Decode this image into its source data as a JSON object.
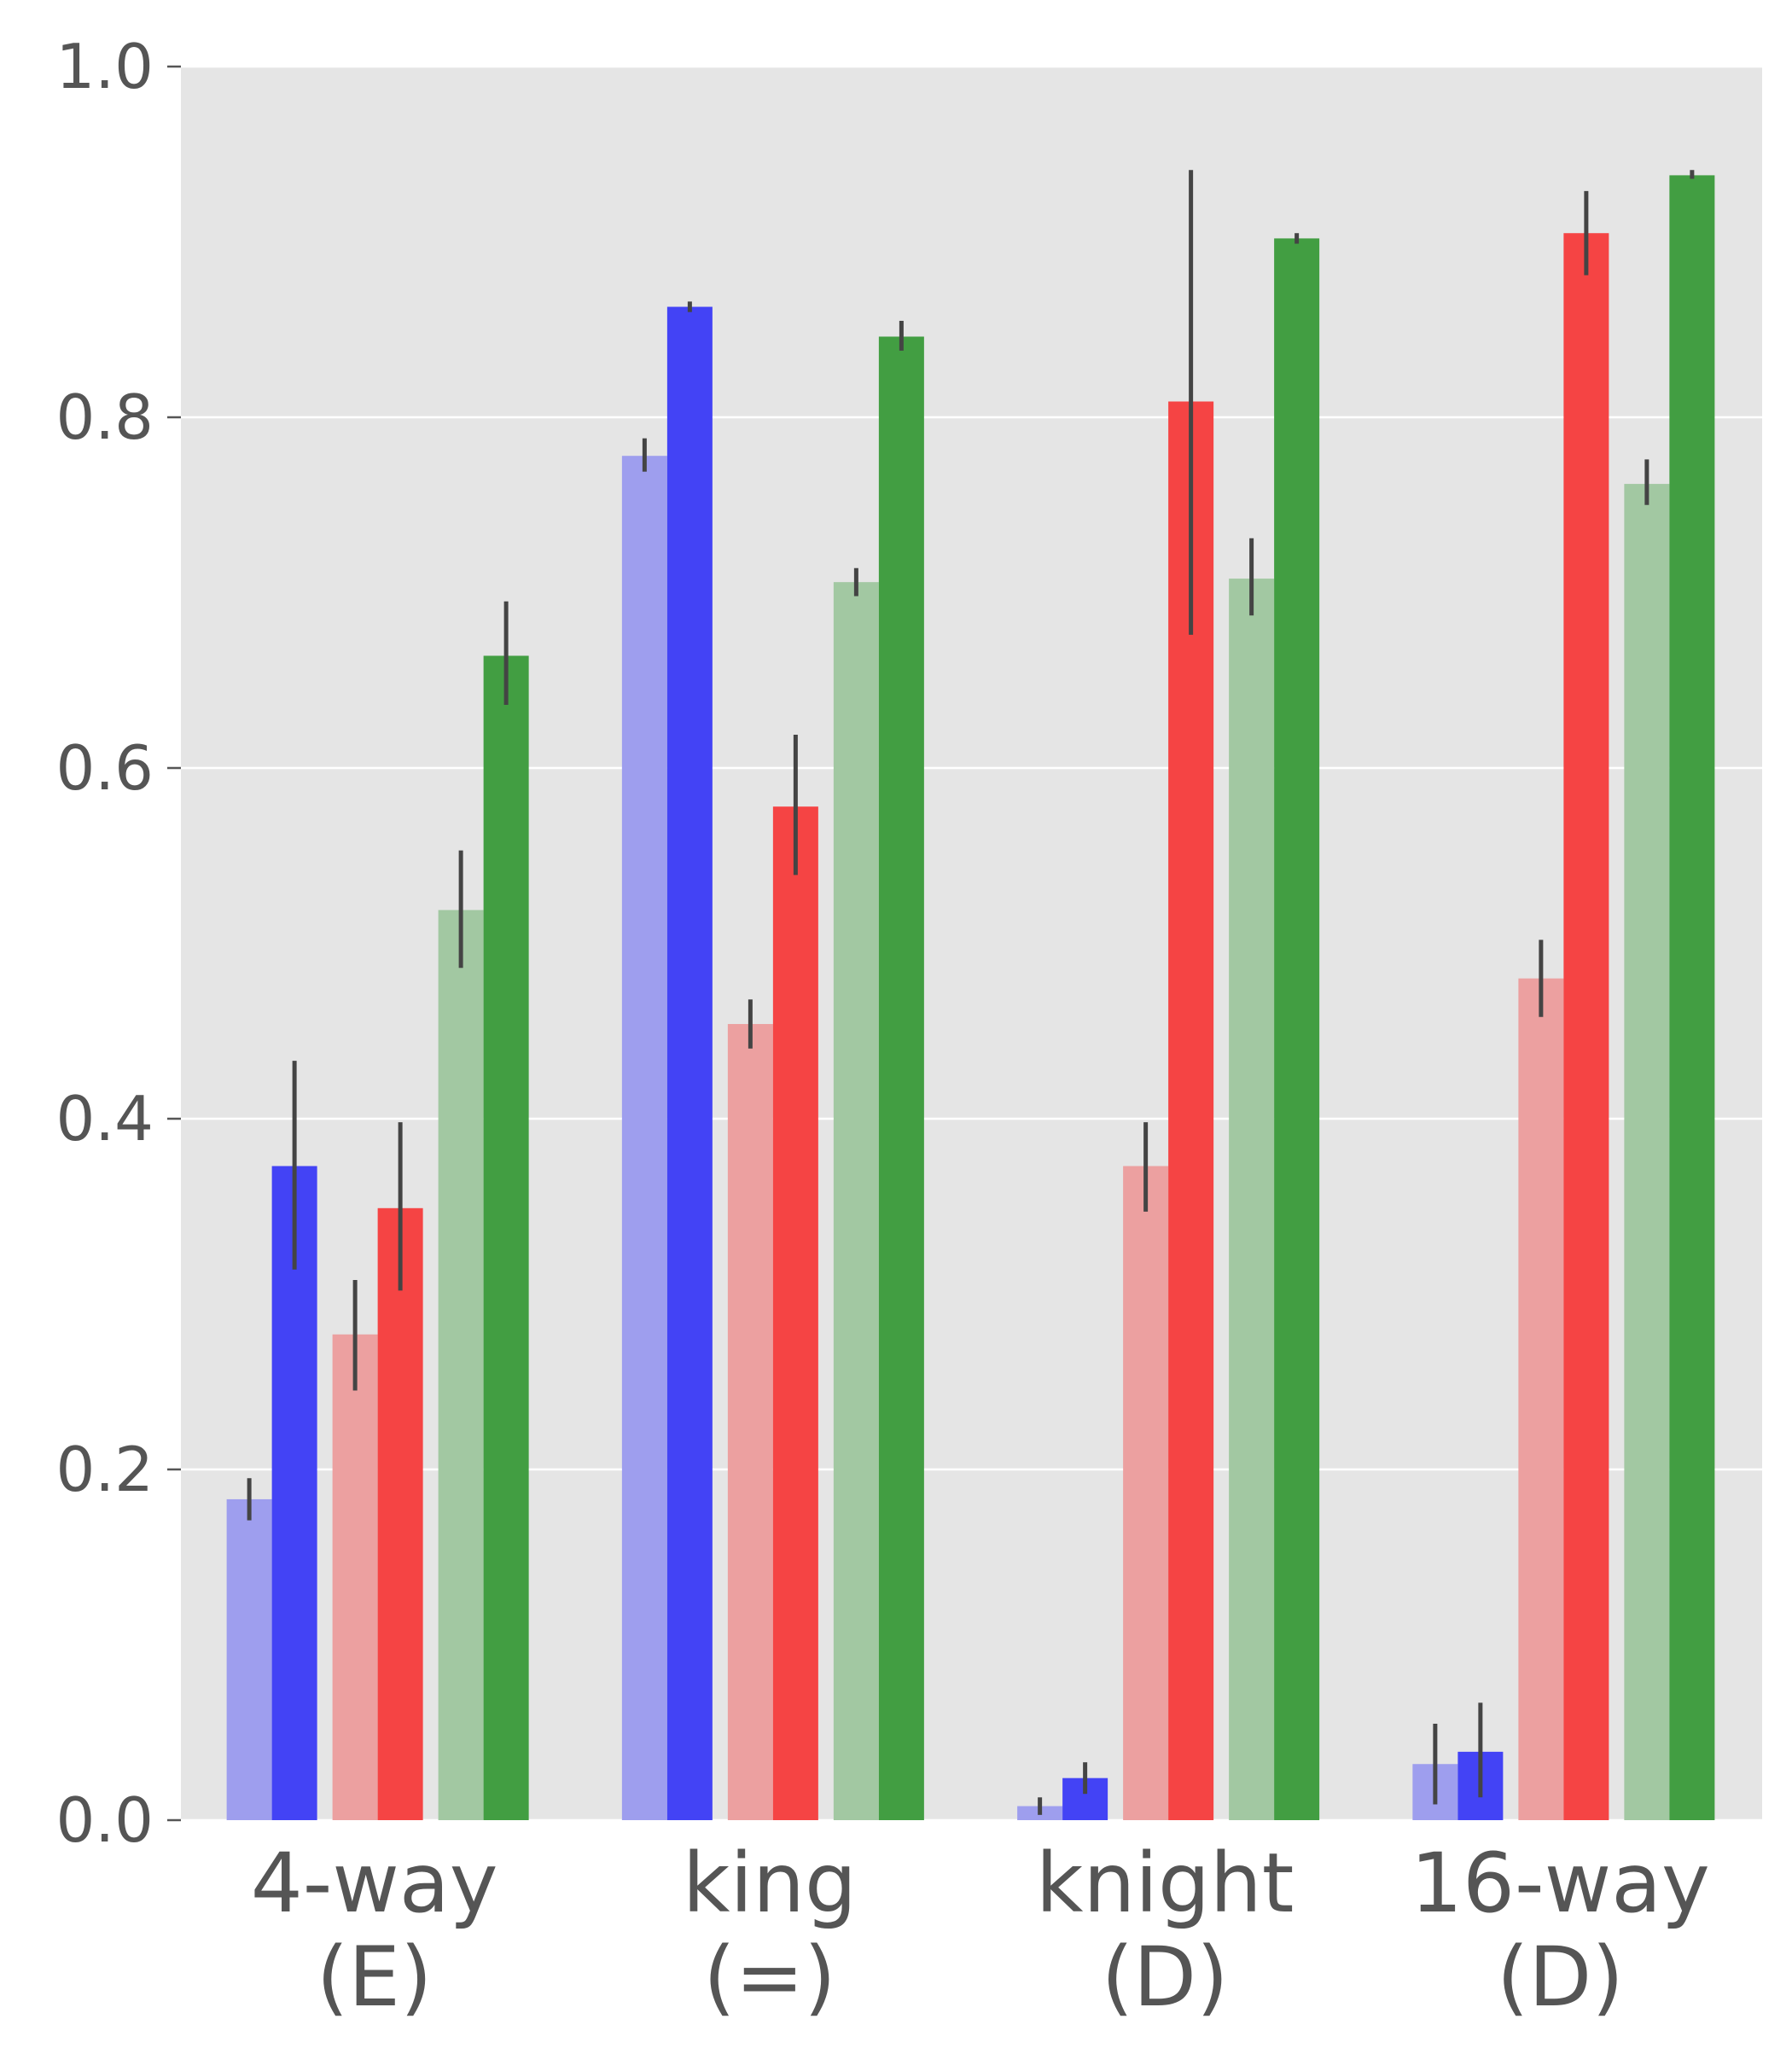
{
  "chart_data": {
    "type": "bar",
    "title": "",
    "xlabel": "",
    "ylabel": "",
    "categories": [
      {
        "line1": "4-way",
        "line2": "(E)"
      },
      {
        "line1": "king",
        "line2": "(=)"
      },
      {
        "line1": "knight",
        "line2": "(D)"
      },
      {
        "line1": "16-way",
        "line2": "(D)"
      }
    ],
    "ylim": [
      0,
      1.0
    ],
    "yticks": [
      "0.0",
      "0.2",
      "0.4",
      "0.6",
      "0.8",
      "1.0"
    ],
    "grid": true,
    "legend": "none",
    "series": [
      {
        "color": "#9e9eee",
        "values": [
          0.183,
          0.778,
          0.008,
          0.032
        ],
        "err_low": [
          0.171,
          0.769,
          0.003,
          0.009
        ],
        "err_high": [
          0.195,
          0.788,
          0.013,
          0.055
        ]
      },
      {
        "color": "#4343f5",
        "values": [
          0.373,
          0.863,
          0.024,
          0.039
        ],
        "err_low": [
          0.314,
          0.86,
          0.015,
          0.013
        ],
        "err_high": [
          0.433,
          0.866,
          0.033,
          0.067
        ]
      },
      {
        "color": "#eca0a0",
        "values": [
          0.277,
          0.454,
          0.373,
          0.48
        ],
        "err_low": [
          0.245,
          0.44,
          0.347,
          0.458
        ],
        "err_high": [
          0.308,
          0.468,
          0.398,
          0.502
        ]
      },
      {
        "color": "#f54444",
        "values": [
          0.349,
          0.578,
          0.809,
          0.905
        ],
        "err_low": [
          0.302,
          0.539,
          0.676,
          0.881
        ],
        "err_high": [
          0.398,
          0.619,
          0.941,
          0.929
        ]
      },
      {
        "color": "#a2c8a2",
        "values": [
          0.519,
          0.706,
          0.708,
          0.762
        ],
        "err_low": [
          0.486,
          0.698,
          0.687,
          0.75
        ],
        "err_high": [
          0.553,
          0.714,
          0.731,
          0.776
        ]
      },
      {
        "color": "#429e42",
        "values": [
          0.664,
          0.846,
          0.902,
          0.938
        ],
        "err_low": [
          0.636,
          0.838,
          0.899,
          0.936
        ],
        "err_high": [
          0.695,
          0.855,
          0.905,
          0.941
        ]
      }
    ]
  }
}
